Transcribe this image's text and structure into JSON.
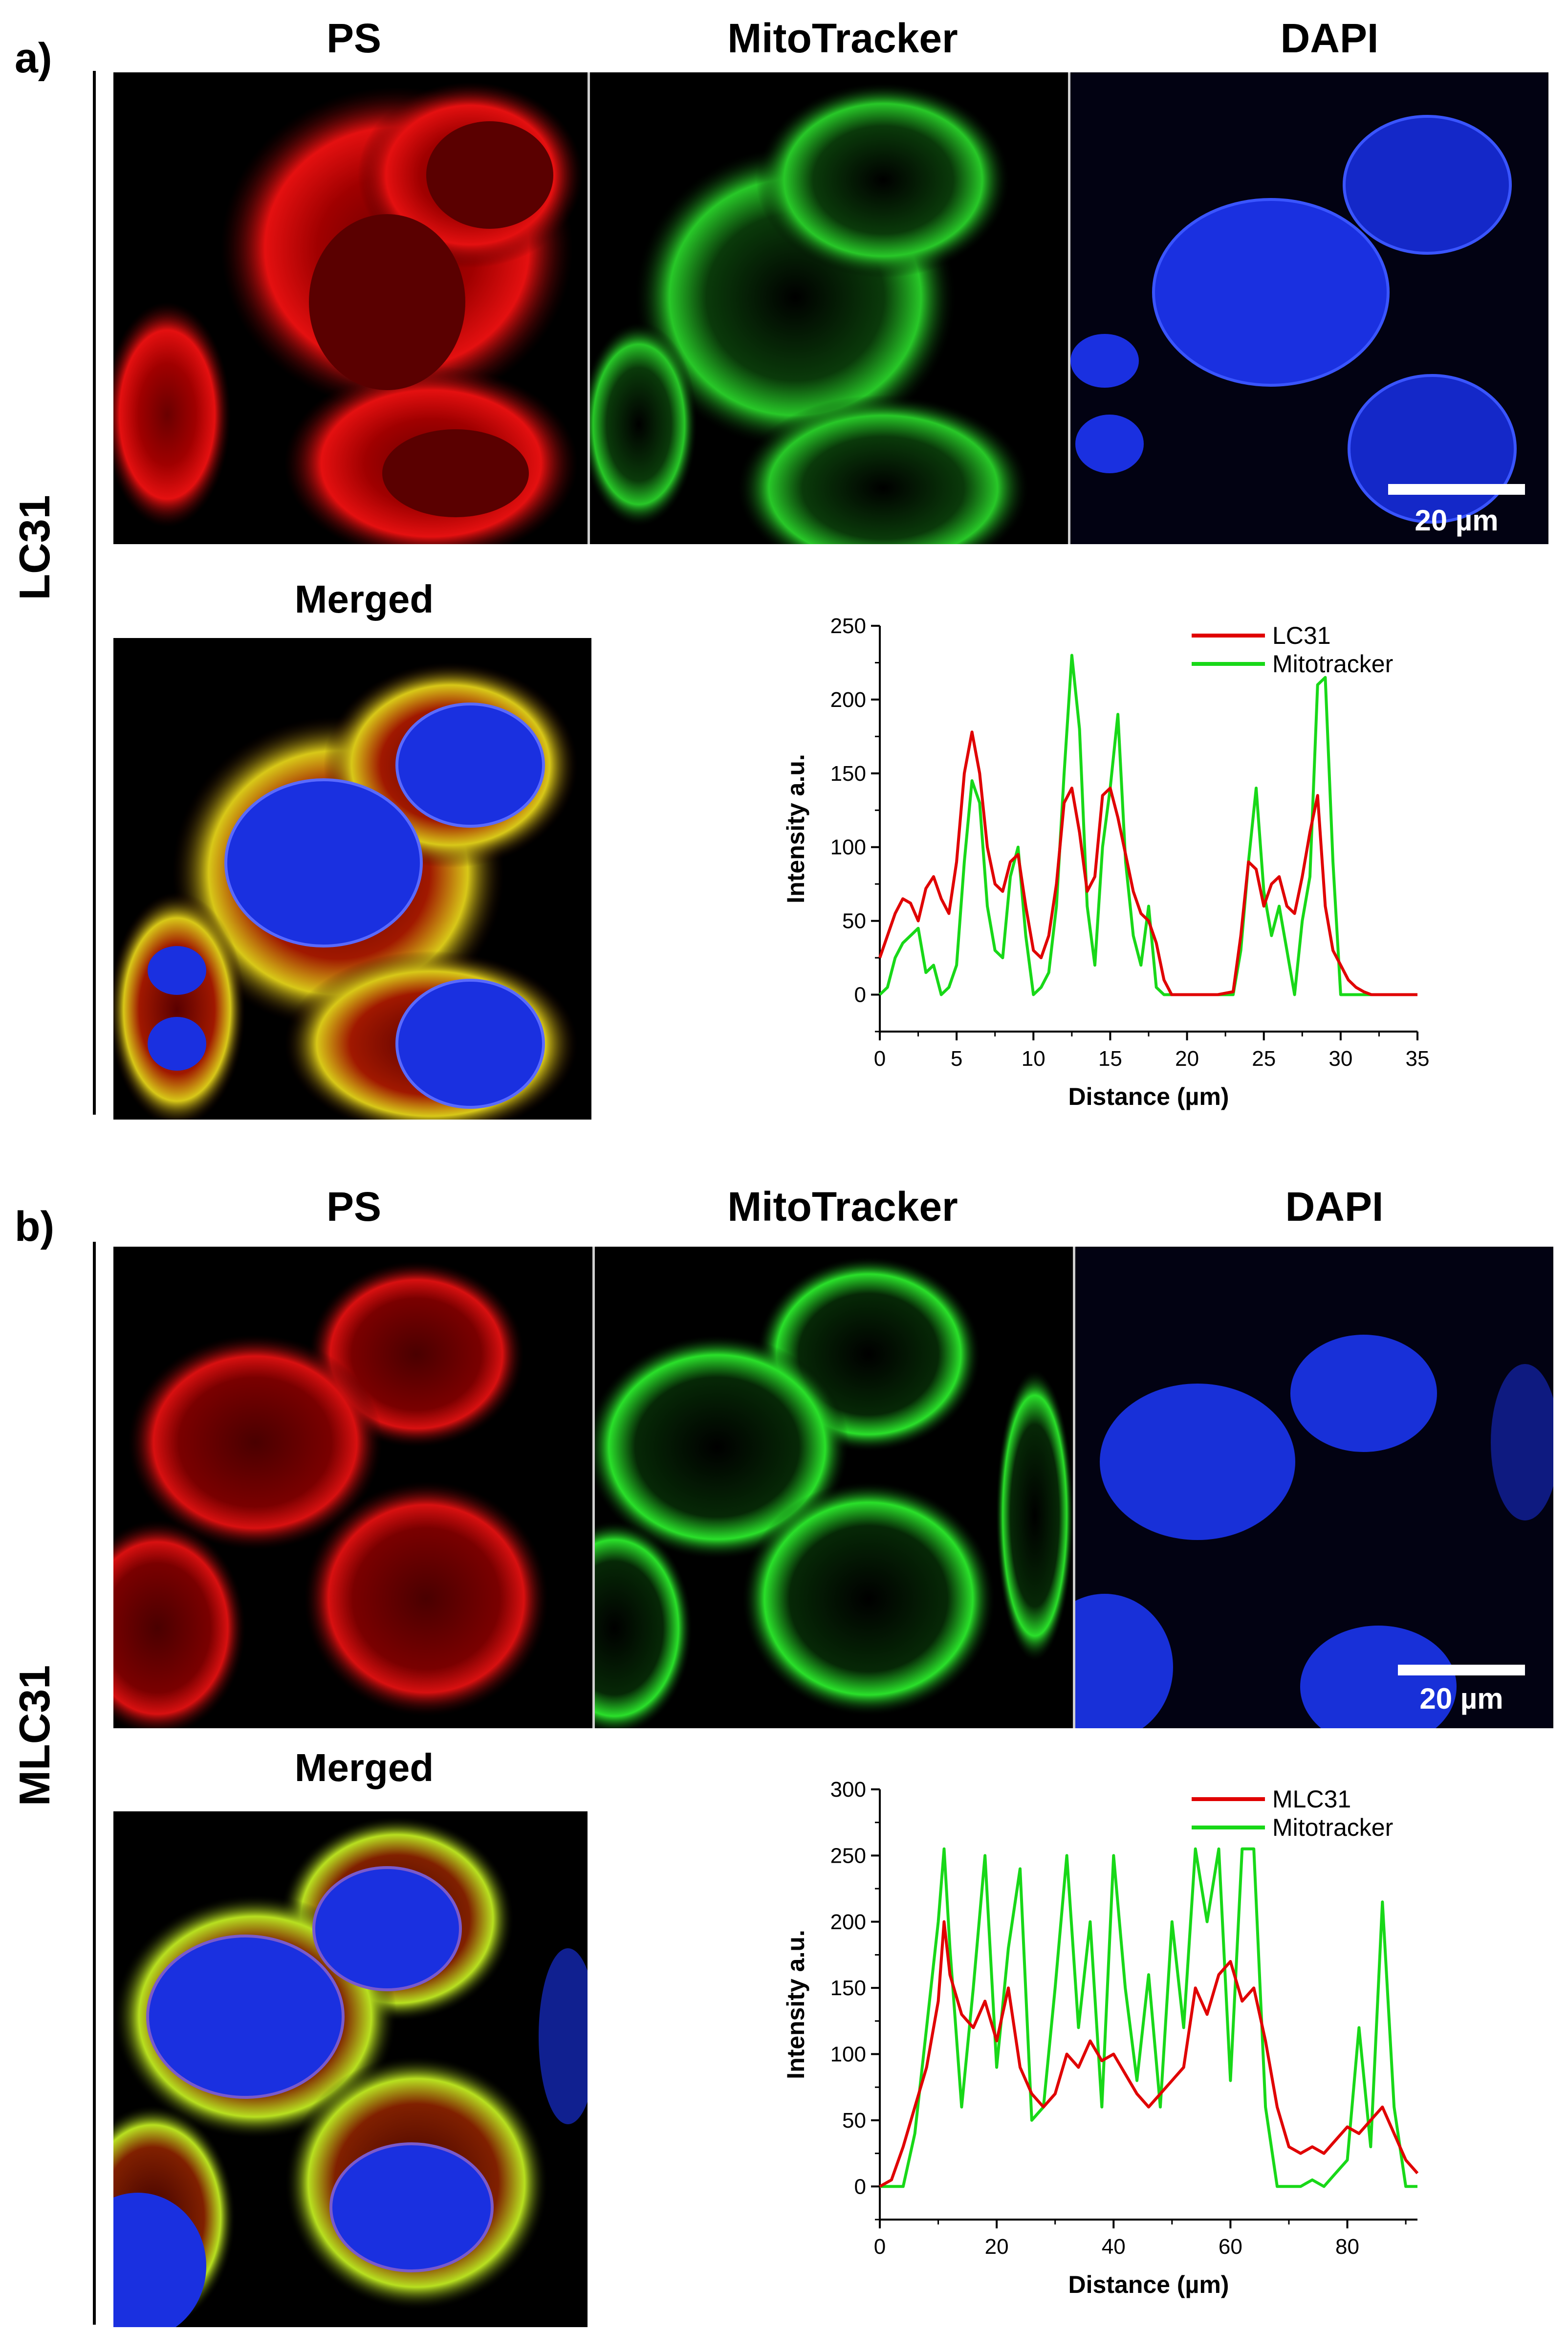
{
  "panels": [
    {
      "letter": "a)",
      "sample": "LC31",
      "columns": [
        "PS",
        "MitoTracker",
        "DAPI"
      ],
      "merged_title": "Merged",
      "scale_bar": "20 µm"
    },
    {
      "letter": "b)",
      "sample": "MLC31",
      "columns": [
        "PS",
        "MitoTracker",
        "DAPI"
      ],
      "merged_title": "Merged",
      "scale_bar": "20 µm"
    }
  ],
  "colors": {
    "ps": "#e00000",
    "mito": "#18d818",
    "dapi": "#1a2cff",
    "background": "#000000"
  },
  "chart_data": [
    {
      "type": "line",
      "xlabel": "Distance (µm)",
      "ylabel": "Intensity a.u.",
      "xlim": [
        0,
        35
      ],
      "ylim": [
        -25,
        250
      ],
      "xticks": [
        0,
        5,
        10,
        15,
        20,
        25,
        30,
        35
      ],
      "yticks": [
        0,
        50,
        100,
        150,
        200,
        250
      ],
      "legend": "top-right",
      "series": [
        {
          "name": "LC31",
          "color": "#e00000",
          "x": [
            0,
            0.5,
            1,
            1.5,
            2,
            2.5,
            3,
            3.5,
            4,
            4.5,
            5,
            5.5,
            6,
            6.5,
            7,
            7.5,
            8,
            8.5,
            9,
            9.5,
            10,
            10.5,
            11,
            11.5,
            12,
            12.5,
            13,
            13.5,
            14,
            14.5,
            15,
            15.5,
            16,
            16.5,
            17,
            17.5,
            18,
            18.5,
            19,
            20,
            21,
            22,
            23,
            23.5,
            24,
            24.5,
            25,
            25.5,
            26,
            26.5,
            27,
            27.5,
            28,
            28.5,
            29,
            29.5,
            30,
            30.5,
            31,
            31.5,
            32,
            33,
            34,
            35
          ],
          "y": [
            25,
            40,
            55,
            65,
            62,
            50,
            72,
            80,
            65,
            55,
            90,
            150,
            178,
            150,
            100,
            75,
            70,
            90,
            95,
            60,
            30,
            25,
            40,
            75,
            130,
            140,
            110,
            70,
            80,
            135,
            140,
            120,
            95,
            70,
            55,
            50,
            35,
            10,
            0,
            0,
            0,
            0,
            2,
            40,
            90,
            85,
            60,
            75,
            80,
            60,
            55,
            80,
            110,
            135,
            60,
            30,
            20,
            10,
            5,
            2,
            0,
            0,
            0,
            0
          ]
        },
        {
          "name": "Mitotracker",
          "color": "#18d818",
          "x": [
            0,
            0.5,
            1,
            1.5,
            2,
            2.5,
            3,
            3.5,
            4,
            4.5,
            5,
            5.5,
            6,
            6.5,
            7,
            7.5,
            8,
            8.5,
            9,
            9.5,
            10,
            10.5,
            11,
            11.5,
            12,
            12.5,
            13,
            13.5,
            14,
            14.5,
            15,
            15.5,
            16,
            16.5,
            17,
            17.5,
            18,
            18.5,
            19,
            20,
            21,
            22,
            23,
            23.5,
            24,
            24.5,
            25,
            25.5,
            26,
            26.5,
            27,
            27.5,
            28,
            28.5,
            29,
            29.5,
            30,
            30.5,
            31,
            31.5,
            32,
            33,
            34,
            35
          ],
          "y": [
            0,
            5,
            25,
            35,
            40,
            45,
            15,
            20,
            0,
            5,
            20,
            90,
            145,
            130,
            60,
            30,
            25,
            80,
            100,
            40,
            0,
            5,
            15,
            60,
            150,
            230,
            180,
            60,
            20,
            100,
            140,
            190,
            90,
            40,
            20,
            60,
            5,
            0,
            0,
            0,
            0,
            0,
            0,
            30,
            90,
            140,
            70,
            40,
            60,
            30,
            0,
            50,
            80,
            210,
            215,
            90,
            0,
            0,
            0,
            0,
            0,
            0,
            0,
            0
          ]
        }
      ]
    },
    {
      "type": "line",
      "xlabel": "Distance (µm)",
      "ylabel": "Intensity a.u.",
      "xlim": [
        0,
        92
      ],
      "ylim": [
        -25,
        300
      ],
      "xticks": [
        0,
        20,
        40,
        60,
        80
      ],
      "yticks": [
        0,
        50,
        100,
        150,
        200,
        250,
        300
      ],
      "legend": "top-right",
      "series": [
        {
          "name": "MLC31",
          "color": "#e00000",
          "x": [
            0,
            2,
            4,
            6,
            8,
            10,
            11,
            12,
            14,
            16,
            18,
            20,
            22,
            24,
            26,
            28,
            30,
            32,
            34,
            36,
            38,
            40,
            42,
            44,
            46,
            48,
            50,
            52,
            54,
            56,
            58,
            60,
            62,
            64,
            66,
            68,
            70,
            72,
            74,
            76,
            78,
            80,
            82,
            84,
            86,
            88,
            90,
            92
          ],
          "y": [
            0,
            5,
            30,
            60,
            90,
            140,
            200,
            160,
            130,
            120,
            140,
            110,
            150,
            90,
            70,
            60,
            70,
            100,
            90,
            110,
            95,
            100,
            85,
            70,
            60,
            70,
            80,
            90,
            150,
            130,
            160,
            170,
            140,
            150,
            110,
            60,
            30,
            25,
            30,
            25,
            35,
            45,
            40,
            50,
            60,
            40,
            20,
            10
          ]
        },
        {
          "name": "Mitotracker",
          "color": "#18d818",
          "x": [
            0,
            2,
            4,
            6,
            8,
            10,
            11,
            12,
            14,
            16,
            18,
            20,
            22,
            24,
            26,
            28,
            30,
            32,
            34,
            36,
            38,
            40,
            42,
            44,
            46,
            48,
            50,
            52,
            54,
            56,
            58,
            60,
            62,
            64,
            66,
            68,
            70,
            72,
            74,
            76,
            78,
            80,
            82,
            84,
            86,
            88,
            90,
            92
          ],
          "y": [
            0,
            0,
            0,
            40,
            120,
            200,
            255,
            180,
            60,
            150,
            250,
            90,
            180,
            240,
            50,
            60,
            150,
            250,
            120,
            200,
            60,
            250,
            150,
            80,
            160,
            60,
            200,
            120,
            255,
            200,
            255,
            80,
            255,
            255,
            60,
            0,
            0,
            0,
            5,
            0,
            10,
            20,
            120,
            30,
            215,
            60,
            0,
            0
          ]
        }
      ]
    }
  ]
}
